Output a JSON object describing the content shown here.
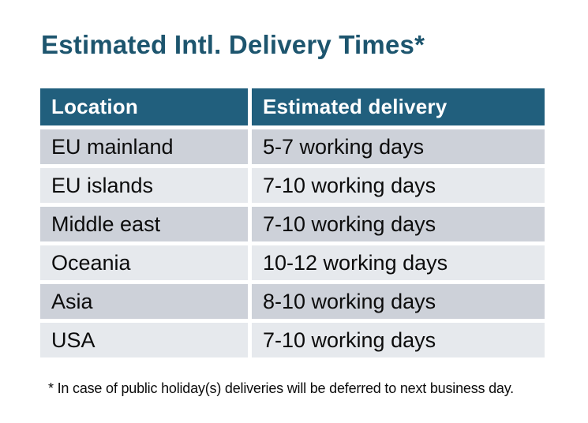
{
  "page": {
    "title": "Estimated Intl. Delivery Times*",
    "footnote": "* In case of public holiday(s) deliveries will be deferred to next business day."
  },
  "table": {
    "columns": [
      "Location",
      "Estimated delivery"
    ],
    "rows": [
      {
        "location": "EU mainland",
        "delivery": "5-7 working days"
      },
      {
        "location": "EU islands",
        "delivery": "7-10 working days"
      },
      {
        "location": "Middle east",
        "delivery": "7-10 working days"
      },
      {
        "location": "Oceania",
        "delivery": "10-12 working days"
      },
      {
        "location": "Asia",
        "delivery": "8-10 working days"
      },
      {
        "location": "USA",
        "delivery": "7-10 working days"
      }
    ]
  },
  "colors": {
    "title_teal": "#1D556E",
    "header_teal": "#215F7D",
    "row_dark": "#CDD1D9",
    "row_light": "#E6E9ED",
    "text": "#0C0C0C",
    "background": "#FFFFFF"
  }
}
